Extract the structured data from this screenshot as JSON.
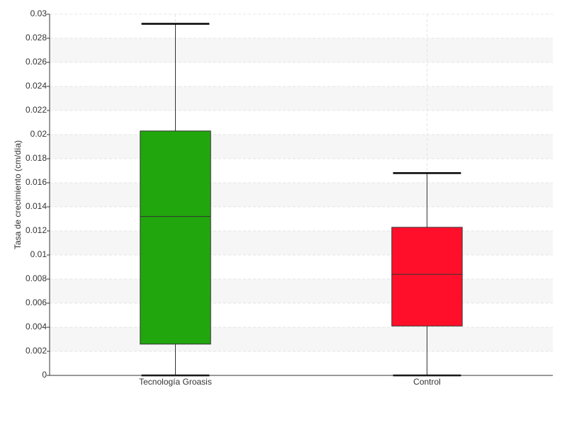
{
  "chart_data": {
    "type": "box",
    "y_label": "Tasa de crecimiento (cm/día)",
    "categories": [
      "Tecnología Groasis",
      "Control"
    ],
    "boxes": [
      {
        "name": "Tecnología Groasis",
        "color": "#22a60e",
        "min": 0,
        "q1": 0.0026,
        "median": 0.0132,
        "q3": 0.0203,
        "max": 0.0292
      },
      {
        "name": "Control",
        "color": "#ff0f2a",
        "min": 0,
        "q1": 0.0041,
        "median": 0.0084,
        "q3": 0.0123,
        "max": 0.0168
      }
    ],
    "ylim": [
      0,
      0.03
    ],
    "yticks": [
      0,
      0.002,
      0.004,
      0.006,
      0.008,
      0.01,
      0.012,
      0.014,
      0.016,
      0.018,
      0.02,
      0.022,
      0.024,
      0.026,
      0.028,
      0.03
    ],
    "grid": true,
    "banded": true
  }
}
